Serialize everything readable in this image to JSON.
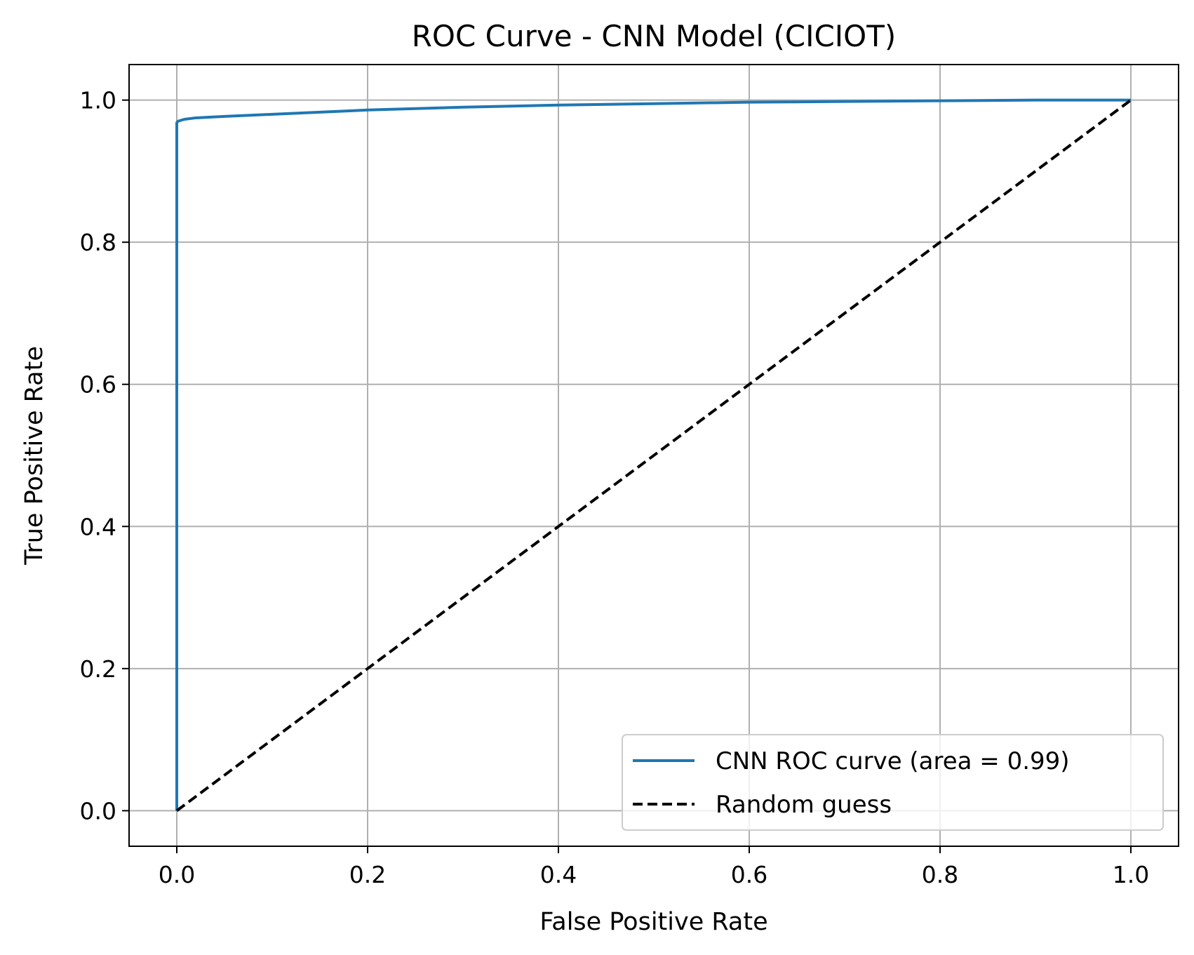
{
  "chart_data": {
    "type": "line",
    "title": "ROC Curve - CNN Model (CICIOT)",
    "xlabel": "False Positive Rate",
    "ylabel": "True Positive Rate",
    "xlim": [
      -0.05,
      1.05
    ],
    "ylim": [
      -0.05,
      1.05
    ],
    "xticks": [
      0.0,
      0.2,
      0.4,
      0.6,
      0.8,
      1.0
    ],
    "yticks": [
      0.0,
      0.2,
      0.4,
      0.6,
      0.8,
      1.0
    ],
    "xtick_labels": [
      "0.0",
      "0.2",
      "0.4",
      "0.6",
      "0.8",
      "1.0"
    ],
    "ytick_labels": [
      "0.0",
      "0.2",
      "0.4",
      "0.6",
      "0.8",
      "1.0"
    ],
    "grid": true,
    "legend_position": "lower-right",
    "series": [
      {
        "name": "CNN ROC curve (area = 0.99)",
        "color": "#1f77b4",
        "style": "solid",
        "x": [
          0.0,
          0.0,
          0.0,
          0.001,
          0.003,
          0.008,
          0.02,
          0.05,
          0.1,
          0.2,
          0.3,
          0.4,
          0.5,
          0.6,
          0.7,
          0.8,
          0.9,
          1.0
        ],
        "y": [
          0.0,
          0.5,
          0.968,
          0.97,
          0.971,
          0.973,
          0.975,
          0.977,
          0.98,
          0.986,
          0.99,
          0.993,
          0.995,
          0.997,
          0.998,
          0.999,
          1.0,
          1.0
        ]
      },
      {
        "name": "Random guess",
        "color": "#000000",
        "style": "dashed",
        "x": [
          0.0,
          1.0
        ],
        "y": [
          0.0,
          1.0
        ]
      }
    ]
  }
}
